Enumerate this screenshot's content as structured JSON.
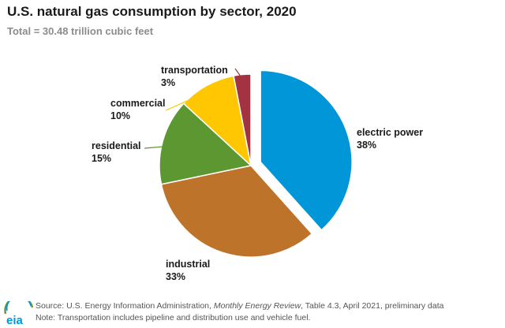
{
  "title": "U.S. natural gas consumption by sector, 2020",
  "subtitle": "Total = 30.48 trillion cubic feet",
  "chart_data": {
    "type": "pie",
    "title": "U.S. natural gas consumption by sector, 2020",
    "subtitle": "Total = 30.48 trillion cubic feet",
    "slices": [
      {
        "name": "electric power",
        "value": 38,
        "label": "38%",
        "color": "#0096d7",
        "exploded": true
      },
      {
        "name": "industrial",
        "value": 33,
        "label": "33%",
        "color": "#bd732a",
        "exploded": false
      },
      {
        "name": "residential",
        "value": 15,
        "label": "15%",
        "color": "#5d9732",
        "exploded": false
      },
      {
        "name": "commercial",
        "value": 10,
        "label": "10%",
        "color": "#ffc702",
        "exploded": false
      },
      {
        "name": "transportation",
        "value": 3,
        "label": "3%",
        "color": "#a33340",
        "exploded": false
      }
    ]
  },
  "footer": {
    "source_prefix": "Source: U.S. Energy Information Administration, ",
    "source_title": "Monthly Energy Review",
    "source_suffix": ", Table 4.3, April 2021, preliminary data",
    "note": "Note: Transportation includes pipeline and distribution use and vehicle fuel.",
    "logo_text": "eia"
  },
  "colors": {
    "eia_blue": "#0096d7",
    "eia_green": "#5d9732"
  }
}
